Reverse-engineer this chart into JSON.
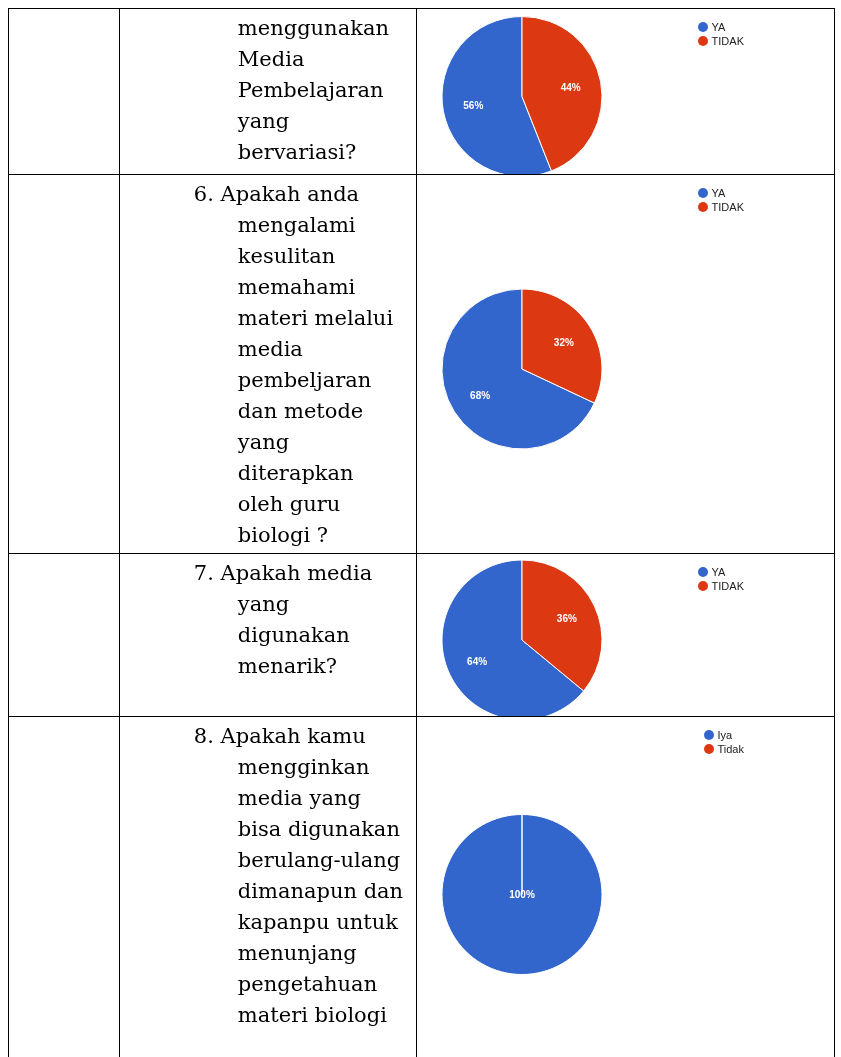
{
  "chart_data": [
    {
      "type": "pie",
      "title": "menggunakan Media Pembelajaran yang bervariasi?",
      "categories": [
        "YA",
        "TIDAK"
      ],
      "values": [
        56,
        44
      ],
      "colors": [
        "#3366cc",
        "#dc3912"
      ],
      "value_labels": [
        "56%",
        "44%"
      ],
      "legend": "top right"
    },
    {
      "type": "pie",
      "title": "6.  Apakah anda mengalami kesulitan memahami materi melalui media pembeljaran dan metode yang diterapkan oleh guru biologi ?",
      "categories": [
        "YA",
        "TIDAK"
      ],
      "values": [
        68,
        32
      ],
      "colors": [
        "#3366cc",
        "#dc3912"
      ],
      "value_labels": [
        "68%",
        "32%"
      ],
      "legend": "top right"
    },
    {
      "type": "pie",
      "title": "7.  Apakah media yang digunakan menarik?",
      "categories": [
        "YA",
        "TIDAK"
      ],
      "values": [
        64,
        36
      ],
      "colors": [
        "#3366cc",
        "#dc3912"
      ],
      "value_labels": [
        "64%",
        "36%"
      ],
      "legend": "top right"
    },
    {
      "type": "pie",
      "title": "8.  Apakah kamu mengginkan media yang bisa digunakan berulang-ulang dimanapun dan kapanpu untuk menunjang pengetahuan materi biologi",
      "categories": [
        "Iya",
        "Tidak"
      ],
      "values": [
        100,
        0
      ],
      "colors": [
        "#3366cc",
        "#dc3912"
      ],
      "value_labels": [
        "100%",
        null
      ],
      "legend": "top right"
    }
  ]
}
